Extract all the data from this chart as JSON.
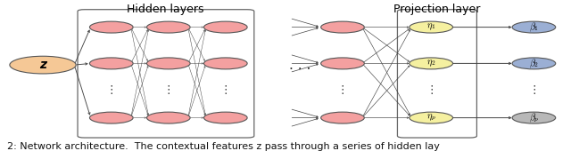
{
  "title_hidden": "Hidden layers",
  "title_projection": "Projection layer",
  "caption": "2: Network architecture.  The contextual features z pass through a series of hidden lay",
  "z_color": "#F5C896",
  "hidden_color": "#F4A0A0",
  "eta_color": "#F5F0A0",
  "beta_color": "#9BAFD4",
  "beta_p_color": "#B8B8B8",
  "background": "#ffffff",
  "box_color": "#666666",
  "arrow_color": "#444444",
  "title_fontsize": 9,
  "caption_fontsize": 8,
  "node_r": 0.038,
  "z_r": 0.058
}
